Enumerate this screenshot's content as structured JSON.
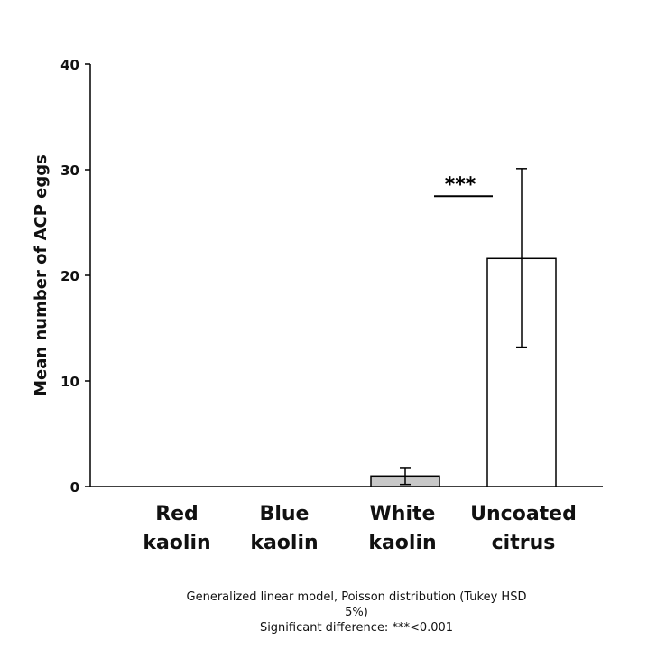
{
  "chart_data": {
    "type": "bar",
    "ylabel": "Mean number of ACP eggs",
    "ylim": [
      0,
      40
    ],
    "yticks": [
      "0",
      "10",
      "20",
      "30",
      "40"
    ],
    "categories": [
      {
        "line1": "Red",
        "line2": "kaolin"
      },
      {
        "line1": "Blue",
        "line2": "kaolin"
      },
      {
        "line1": "White",
        "line2": "kaolin"
      },
      {
        "line1": "Uncoated",
        "line2": "citrus"
      }
    ],
    "values": [
      0,
      0,
      1.0,
      21.6
    ],
    "error_low": [
      0,
      0,
      0.2,
      13.2
    ],
    "error_high": [
      0,
      0,
      1.8,
      30.1
    ],
    "bar_colors": [
      "#ffffff",
      "#ffffff",
      "#c8c8c8",
      "#ffffff"
    ],
    "significance": {
      "label": "***",
      "y": 27.5
    }
  },
  "footnote": {
    "line1": "Generalized linear model, Poisson distribution (Tukey HSD",
    "line2": "5%)",
    "line3": "Significant difference: ***<0.001"
  }
}
